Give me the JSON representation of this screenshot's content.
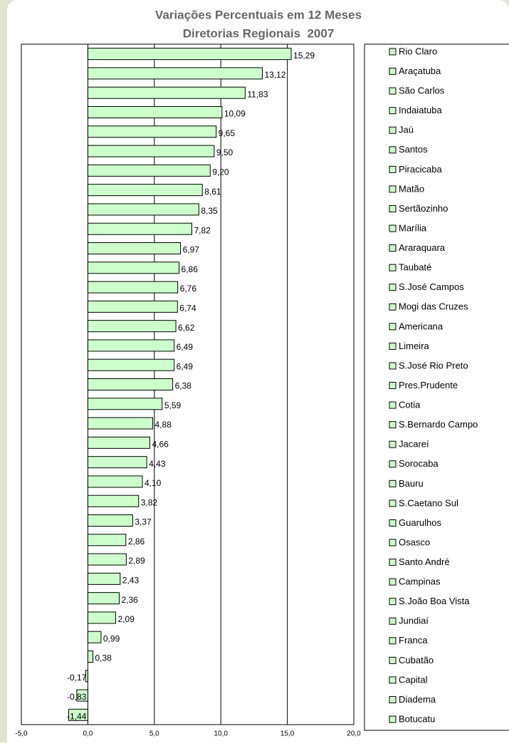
{
  "chart_data": {
    "type": "bar",
    "orientation": "horizontal",
    "title": "Variações Percentuais em 12 Meses",
    "subtitle": "Diretorias Regionais  2007",
    "categories": [
      "Rio Claro",
      "Araçatuba",
      "São Carlos",
      "Indaiatuba",
      "Jaú",
      "Santos",
      "Piracicaba",
      "Matão",
      "Sertãozinho",
      "Marília",
      "Araraquara",
      "Taubaté",
      "S.José Campos",
      "Mogi das Cruzes",
      "Americana",
      "Limeira",
      "S.José Rio Preto",
      "Pres.Prudente",
      "Cotia",
      "S.Bernardo Campo",
      "Jacareí",
      "Sorocaba",
      "Bauru",
      "S.Caetano Sul",
      "Guarulhos",
      "Osasco",
      "Santo André",
      "Campinas",
      "S.João Boa Vista",
      "Jundiaí",
      "Franca",
      "Cubatão",
      "Capital",
      "Diadema",
      "Botucatu"
    ],
    "values": [
      15.29,
      13.12,
      11.83,
      10.09,
      9.65,
      9.5,
      9.2,
      8.61,
      8.35,
      7.82,
      6.97,
      6.86,
      6.76,
      6.74,
      6.62,
      6.49,
      6.49,
      6.38,
      5.59,
      4.88,
      4.66,
      4.43,
      4.1,
      3.82,
      3.37,
      2.86,
      2.89,
      2.43,
      2.36,
      2.09,
      0.99,
      0.38,
      -0.17,
      -0.83,
      -1.44
    ],
    "value_labels": [
      "15,29",
      "13,12",
      "11,83",
      "10,09",
      "9,65",
      "9,50",
      "9,20",
      "8,61",
      "8,35",
      "7,82",
      "6,97",
      "6,86",
      "6,76",
      "6,74",
      "6,62",
      "6,49",
      "6,49",
      "6,38",
      "5,59",
      "4,88",
      "4,66",
      "4,43",
      "4,10",
      "3,82",
      "3,37",
      "2,86",
      "2,89",
      "2,43",
      "2,36",
      "2,09",
      "0,99",
      "0,38",
      "-0,17",
      "-0,83",
      "-1,44"
    ],
    "color": "#ccffcc",
    "xlim": [
      -5,
      20
    ],
    "xticks": [
      {
        "value": -5,
        "label": "-5,0"
      },
      {
        "value": 0,
        "label": "0,0"
      },
      {
        "value": 5,
        "label": "5,0"
      },
      {
        "value": 10,
        "label": "10,0"
      },
      {
        "value": 15,
        "label": "15,0"
      },
      {
        "value": 20,
        "label": "20,0"
      }
    ],
    "grid": true
  }
}
